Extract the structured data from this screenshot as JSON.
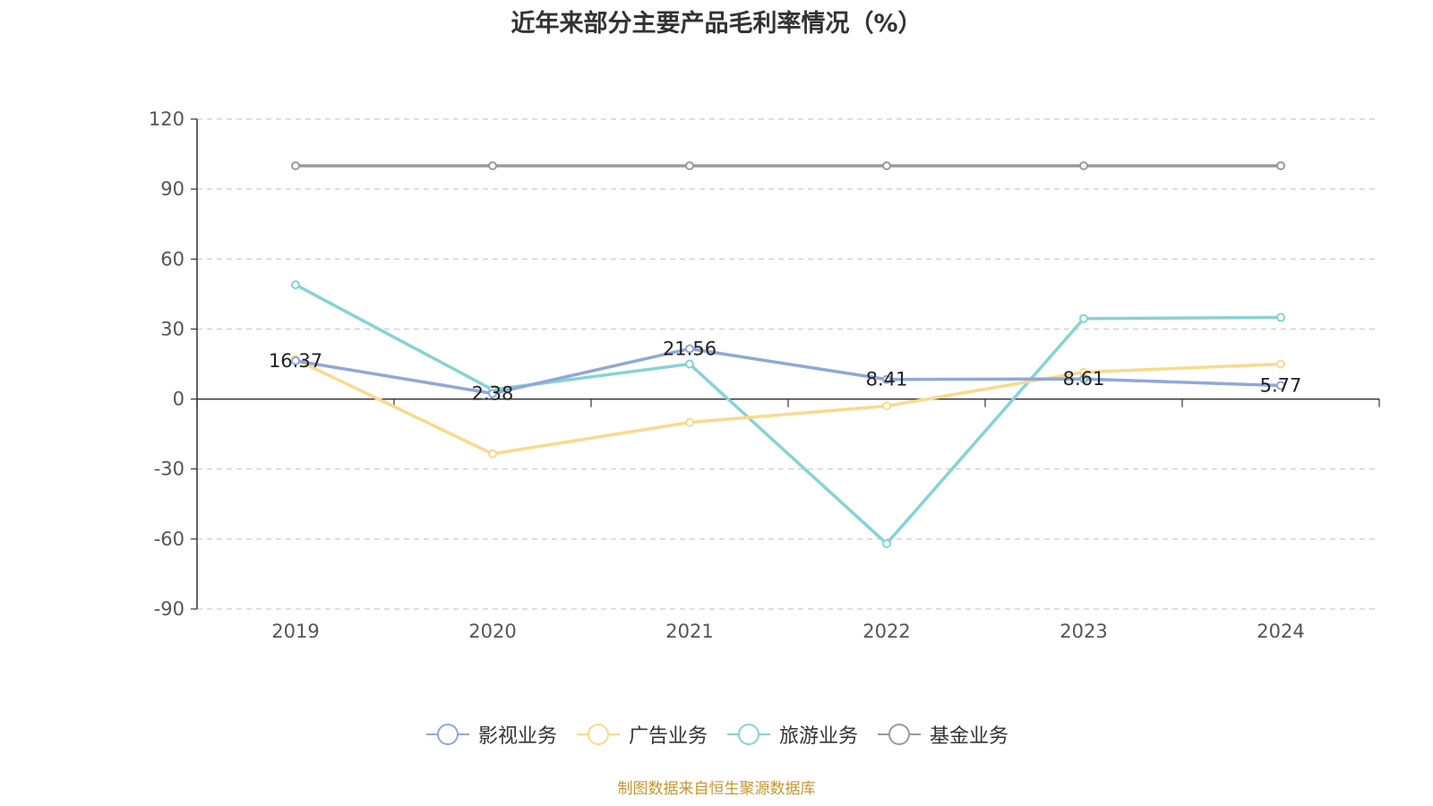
{
  "chart_data": {
    "type": "line",
    "title": "近年来部分主要产品毛利率情况（%）",
    "categories": [
      "2019",
      "2020",
      "2021",
      "2022",
      "2023",
      "2024"
    ],
    "ylim": [
      -90,
      120
    ],
    "yticks": [
      "120",
      "90",
      "60",
      "30",
      "0",
      "-30",
      "-60",
      "-90"
    ],
    "grid": true,
    "legend_position": "bottom",
    "series": [
      {
        "name": "影视业务",
        "color": "#8fa8d8",
        "values": [
          16.37,
          2.38,
          21.56,
          8.41,
          8.61,
          5.77
        ],
        "labels": [
          "16.37",
          "2.38",
          "21.56",
          "8.41",
          "8.61",
          "5.77"
        ]
      },
      {
        "name": "广告业务",
        "color": "#fad98e",
        "values": [
          17,
          -23.5,
          -10,
          -3,
          11.5,
          15
        ]
      },
      {
        "name": "旅游业务",
        "color": "#86d3d3",
        "values": [
          49,
          4,
          15,
          -62,
          34.5,
          35
        ]
      },
      {
        "name": "基金业务",
        "color": "#9a9a9a",
        "values": [
          100,
          100,
          100,
          100,
          100,
          100
        ]
      }
    ]
  },
  "source_note": "制图数据来自恒生聚源数据库"
}
